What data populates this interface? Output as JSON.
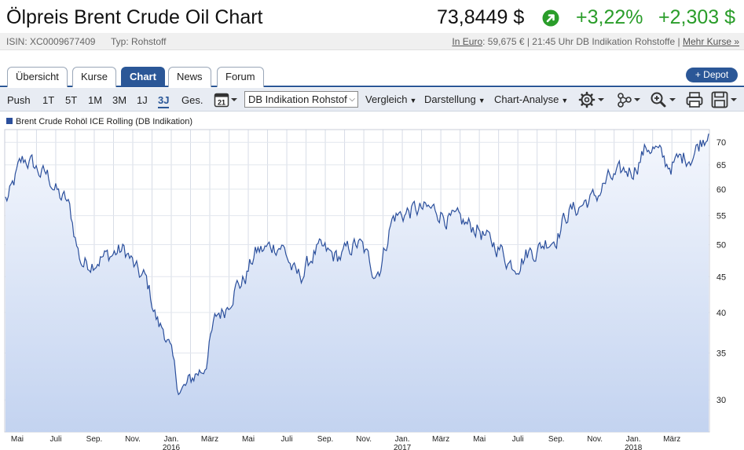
{
  "header": {
    "title": "Ölpreis Brent Crude Oil Chart",
    "price": "73,8449 $",
    "change_pct": "+3,22%",
    "change_abs": "+2,303 $",
    "trend_icon": "arrow-up-right-circle-icon",
    "accent_green": "#2a9d2a"
  },
  "subbar": {
    "isin": "ISIN: XC0009677409",
    "typ": "Typ: Rohstoff",
    "euro_link": "In Euro",
    "euro_text": ": 59,675 € | 21:45 Uhr DB Indikation Rohstoffe | ",
    "more_link": "Mehr Kurse »"
  },
  "tabs": [
    {
      "label": "Übersicht",
      "active": false
    },
    {
      "label": "Kurse",
      "active": false
    },
    {
      "label": "Chart",
      "active": true
    },
    {
      "label": "News",
      "active": false
    },
    {
      "label": "Forum",
      "active": false
    }
  ],
  "depot_button": "+ Depot",
  "toolbar": {
    "ranges": [
      "Push",
      "1T",
      "5T",
      "1M",
      "3M",
      "1J",
      "3J",
      "Ges."
    ],
    "active_range": "3J",
    "calendar_day": "21",
    "source_select": "DB Indikation Rohstoffe",
    "menus": [
      "Vergleich",
      "Darstellung",
      "Chart-Analyse"
    ],
    "icons": [
      "gear-icon",
      "network-icon",
      "zoom-icon",
      "print-icon",
      "save-icon"
    ]
  },
  "legend": {
    "label": "Brent Crude Rohöl ICE Rolling (DB Indikation)",
    "color": "#2b4f9c"
  },
  "chart_data": {
    "type": "area",
    "series": [
      {
        "name": "Brent Crude Rohöl ICE Rolling (DB Indikation)",
        "x": [
          "2015-04",
          "2015-05",
          "2015-06",
          "2015-07",
          "2015-08",
          "2015-09",
          "2015-10",
          "2015-11",
          "2015-12",
          "2016-01",
          "2016-02",
          "2016-03",
          "2016-04",
          "2016-05",
          "2016-06",
          "2016-07",
          "2016-08",
          "2016-09",
          "2016-10",
          "2016-11",
          "2016-12",
          "2017-01",
          "2017-02",
          "2017-03",
          "2017-04",
          "2017-05",
          "2017-06",
          "2017-07",
          "2017-08",
          "2017-09",
          "2017-10",
          "2017-11",
          "2017-12",
          "2018-01",
          "2018-02",
          "2018-03",
          "2018-04"
        ],
        "values": [
          58,
          66,
          63,
          58,
          47,
          48,
          49,
          45,
          38,
          31,
          33,
          40,
          44,
          49,
          50,
          45,
          49,
          48,
          50,
          46,
          55,
          56,
          56,
          54,
          53,
          50,
          47,
          49,
          51,
          56,
          58,
          62,
          64,
          69,
          65,
          67,
          72
        ]
      }
    ],
    "x_tick_labels": [
      "Mai",
      "Juli",
      "Sep.",
      "Nov.",
      "Jan.",
      "März",
      "Mai",
      "Juli",
      "Sep.",
      "Nov.",
      "Jan.",
      "März",
      "Mai",
      "Juli",
      "Sep.",
      "Nov.",
      "Jan.",
      "März"
    ],
    "x_year_labels": [
      "2016",
      "2017",
      "2018"
    ],
    "y_ticks": [
      30,
      35,
      40,
      45,
      50,
      55,
      60,
      65,
      70
    ],
    "ylim": [
      27,
      73
    ],
    "y_scale": "log",
    "grid": true,
    "line_color": "#2b4f9c",
    "fill_top_color": "#f4f7fd",
    "fill_bottom_color": "#c3d3f0"
  }
}
